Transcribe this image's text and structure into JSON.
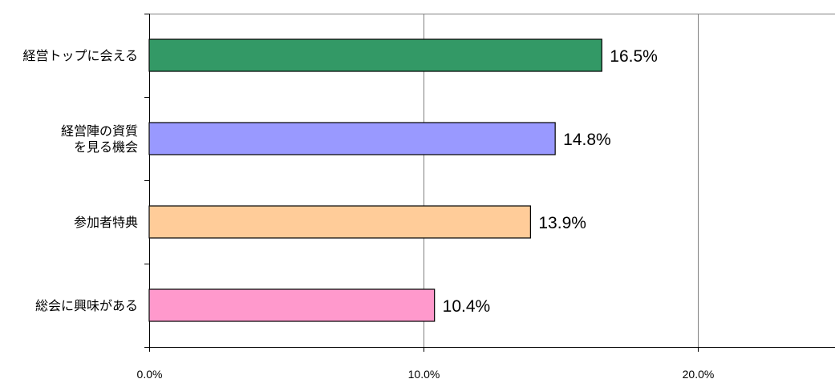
{
  "chart_data": {
    "type": "bar",
    "orientation": "horizontal",
    "categories": [
      [
        "経営トップに会える"
      ],
      [
        "経営陣の資質",
        "を見る機会"
      ],
      [
        "参加者特典"
      ],
      [
        "総会に興味がある"
      ]
    ],
    "values": [
      16.5,
      14.8,
      13.9,
      10.4
    ],
    "value_labels": [
      "16.5%",
      "14.8%",
      "13.9%",
      "10.4%"
    ],
    "colors": [
      "#339966",
      "#9999ff",
      "#ffcc99",
      "#ff99cc"
    ],
    "xlim": [
      0,
      25
    ],
    "x_ticks": [
      {
        "value": 0,
        "label": "0.0%"
      },
      {
        "value": 10,
        "label": "10.0%"
      },
      {
        "value": 20,
        "label": "20.0%"
      }
    ],
    "grid": true,
    "title": "",
    "xlabel": "",
    "ylabel": ""
  }
}
